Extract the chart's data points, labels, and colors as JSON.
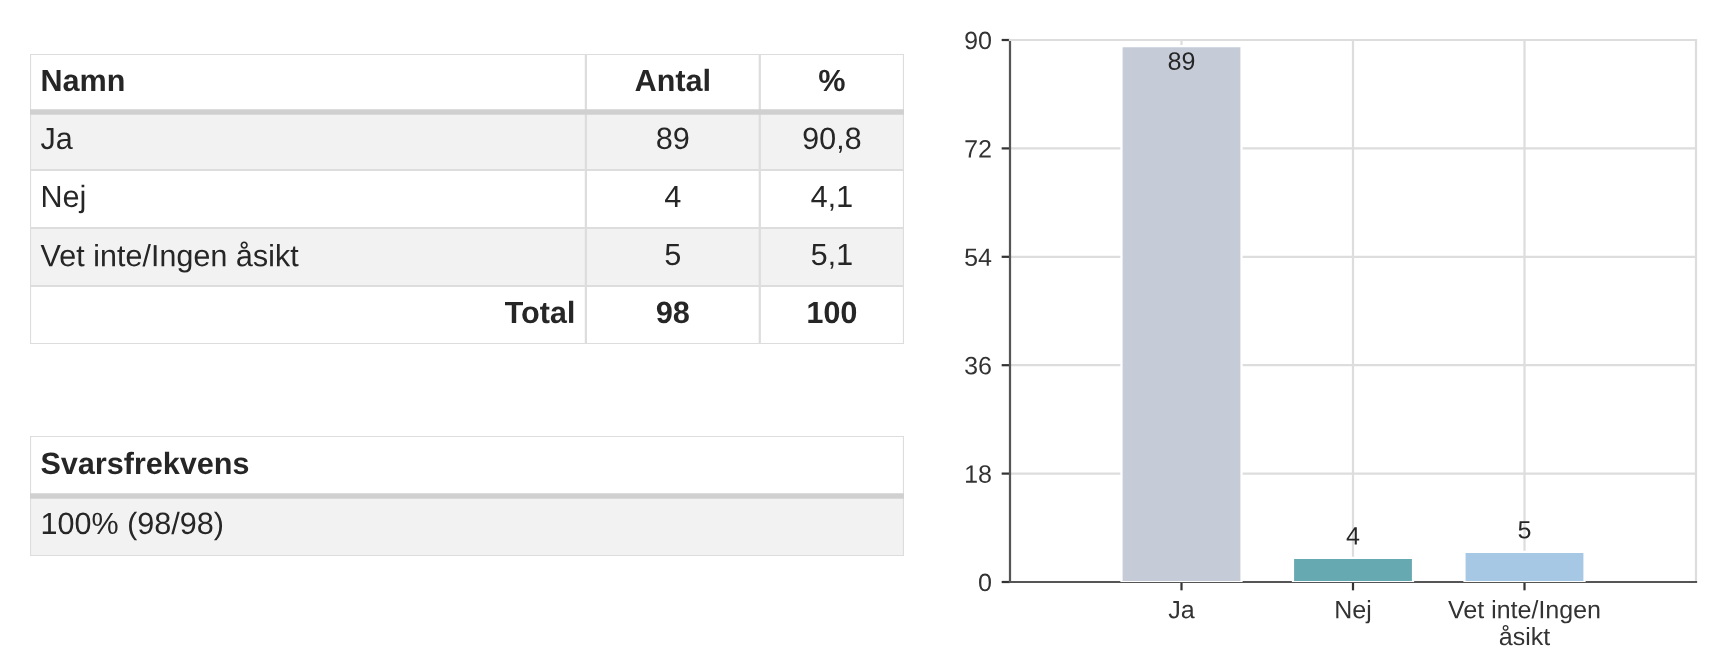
{
  "chart_data": [
    {
      "type": "other",
      "categories": [
        "Ja",
        "Nej",
        "Vet inte/Ingen åsikt"
      ],
      "series": [
        {
          "name": "Antal",
          "colors": [
            "#f2f2f2",
            "#ffffff",
            "#f2f2f2"
          ],
          "values": [
            89,
            4,
            5
          ]
        },
        {
          "name": "%",
          "values": [
            90.8,
            4.1,
            5.1
          ],
          "value_labels": [
            "90,8",
            "4,1",
            "5,1"
          ]
        }
      ],
      "data_labels": true,
      "totals": [
        "98",
        "100"
      ],
      "annotations": [
        "Namn",
        "Total"
      ]
    },
    {
      "type": "other",
      "title": "Svarsfrekvens",
      "annotations": [
        "100% (98/98)"
      ]
    },
    {
      "type": "bar",
      "categories": [
        "Ja",
        "Nej",
        "Vet inte/Ingen\nåsikt"
      ],
      "values": [
        89,
        4,
        5
      ],
      "colors": [
        "#c5ccd8",
        "#66a9b1",
        "#a6c8e5"
      ],
      "ylim": [
        0,
        90
      ],
      "yticks": [
        0,
        18,
        36,
        54,
        72,
        90
      ],
      "grid": true,
      "data_labels": true
    }
  ]
}
